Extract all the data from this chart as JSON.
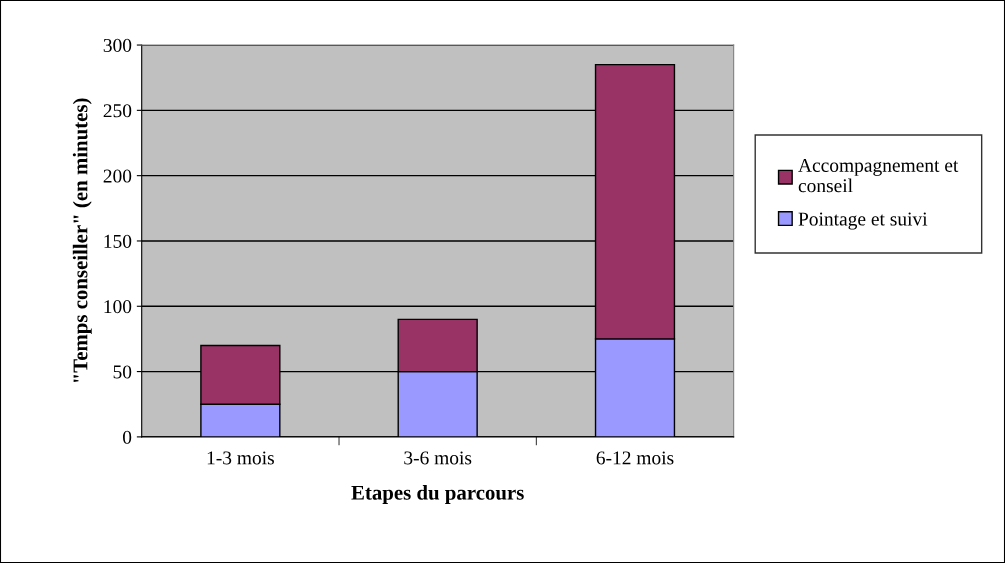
{
  "chart_data": {
    "type": "bar",
    "stacked": true,
    "xlabel": "Etapes du parcours",
    "ylabel": "\"Temps conseiller\" (en minutes)",
    "categories": [
      "1-3 mois",
      "3-6 mois",
      "6-12 mois"
    ],
    "series": [
      {
        "name": "Pointage et suivi",
        "color": "#9999ff",
        "values": [
          25,
          50,
          75
        ]
      },
      {
        "name": "Accompagnement et conseil",
        "color": "#993366",
        "values": [
          45,
          40,
          210
        ]
      }
    ],
    "ylim": [
      0,
      300
    ],
    "yticks": [
      0,
      50,
      100,
      150,
      200,
      250,
      300
    ],
    "grid": "y",
    "legend": "right"
  }
}
